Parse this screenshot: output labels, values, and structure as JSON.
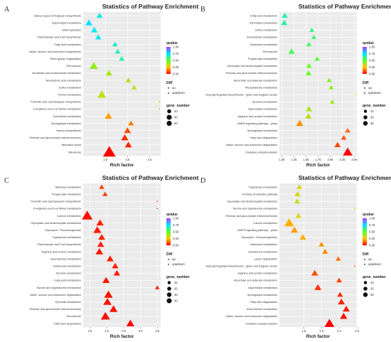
{
  "chart_data": [
    {
      "panel": "A",
      "type": "scatter",
      "title": "Statistics of Pathway Enrichment",
      "xlabel": "Rich factor",
      "xlim": [
        1.0,
        2.75
      ],
      "xticks": [
        "1.5",
        "2.0",
        "2.5"
      ],
      "xtick_values": [
        1.5,
        2.0,
        2.5
      ],
      "qvalue_range": [
        0,
        1
      ],
      "qvalue_ticks": [
        "1.00",
        "0.75",
        "0.50",
        "0.25",
        "0.00"
      ],
      "size_legend_title": "gene_number",
      "size_legend_values": [
        20,
        40,
        60
      ],
      "size_legend_labels": [
        "20",
        "40",
        "60"
      ],
      "diff_title": "Diff",
      "diff_entries": [
        "up",
        "up&down"
      ],
      "terms": [
        {
          "label": "Various types of N-glycan biosynthesis",
          "rich": 1.37,
          "q": 0.72,
          "genes": 8,
          "diff": "up"
        },
        {
          "label": "Glycerolipid metabolism",
          "rich": 1.13,
          "q": 0.76,
          "genes": 12,
          "diff": "up"
        },
        {
          "label": "DNA replication",
          "rich": 1.25,
          "q": 0.74,
          "genes": 10,
          "diff": "up"
        },
        {
          "label": "Pantothenate and CoA biosynthesis",
          "rich": 1.34,
          "q": 0.73,
          "genes": 8,
          "diff": "up"
        },
        {
          "label": "Fatty acid metabolism",
          "rich": 1.72,
          "q": 0.68,
          "genes": 6,
          "diff": "up"
        },
        {
          "label": "Valine, leucine and isoleucine biosynthesis",
          "rich": 1.78,
          "q": 0.68,
          "genes": 6,
          "diff": "up"
        },
        {
          "label": "Other glycan degradation",
          "rich": 1.87,
          "q": 0.66,
          "genes": 6,
          "diff": "up"
        },
        {
          "label": "Peroxisome",
          "rich": 1.24,
          "q": 0.42,
          "genes": 20,
          "diff": "up"
        },
        {
          "label": "Nicotinate and nicotinamide metabolism",
          "rich": 1.58,
          "q": 0.38,
          "genes": 10,
          "diff": "up"
        },
        {
          "label": "Arachidonic acid metabolism",
          "rich": 2.02,
          "q": 0.36,
          "genes": 6,
          "diff": "up"
        },
        {
          "label": "Sulfur metabolism",
          "rich": 2.15,
          "q": 0.35,
          "genes": 5,
          "diff": "up"
        },
        {
          "label": "Purine metabolism",
          "rich": 1.42,
          "q": 0.34,
          "genes": 22,
          "diff": "up"
        },
        {
          "label": "Penicillin and cephalosporin biosynthesis",
          "rich": 2.72,
          "q": 0.32,
          "genes": 3,
          "diff": "up&down"
        },
        {
          "label": "D-Arginine and D-ornithine metabolism",
          "rich": 2.72,
          "q": 0.32,
          "genes": 3,
          "diff": "up&down"
        },
        {
          "label": "Pyrimidine metabolism",
          "rich": 1.57,
          "q": 0.2,
          "genes": 14,
          "diff": "up"
        },
        {
          "label": "Sphingolipid metabolism",
          "rich": 2.08,
          "q": 0.16,
          "genes": 8,
          "diff": "up"
        },
        {
          "label": "Steroid biosynthesis",
          "rich": 2.0,
          "q": 0.1,
          "genes": 12,
          "diff": "up"
        },
        {
          "label": "Pentose and glucuronate interconversions",
          "rich": 1.94,
          "q": 0.06,
          "genes": 14,
          "diff": "up"
        },
        {
          "label": "Mismatch repair",
          "rich": 2.02,
          "q": 0.04,
          "genes": 12,
          "diff": "up"
        },
        {
          "label": "Ribosome",
          "rich": 1.59,
          "q": 0.0,
          "genes": 60,
          "diff": "up"
        }
      ]
    },
    {
      "panel": "B",
      "type": "scatter",
      "title": "Statistics of Pathway Enrichment",
      "xlabel": "Rich factor",
      "xlim": [
        0.95,
        2.55
      ],
      "xticks": [
        "1.00",
        "1.25",
        "1.50",
        "1.75",
        "2.00",
        "2.25",
        "2.50"
      ],
      "xtick_values": [
        1.0,
        1.25,
        1.5,
        1.75,
        2.0,
        2.25,
        2.5
      ],
      "qvalue_range": [
        0,
        1
      ],
      "qvalue_ticks": [
        "1.00",
        "0.75",
        "0.50",
        "0.25",
        "0.00"
      ],
      "size_legend_title": "gene_number",
      "size_legend_values": [
        10,
        20,
        30
      ],
      "size_legend_labels": [
        "10",
        "20",
        "30"
      ],
      "diff_title": "Diff",
      "diff_entries": [
        "up",
        "up&down"
      ],
      "terms": [
        {
          "label": "Fatty acid metabolism",
          "rich": 1.06,
          "q": 0.66,
          "genes": 8,
          "diff": "up"
        },
        {
          "label": "Pyrimidine metabolism",
          "rich": 1.05,
          "q": 0.64,
          "genes": 9,
          "diff": "up"
        },
        {
          "label": "Sulfur metabolism",
          "rich": 1.62,
          "q": 0.6,
          "genes": 4,
          "diff": "up"
        },
        {
          "label": "beta-Alanine metabolism",
          "rich": 1.66,
          "q": 0.58,
          "genes": 4,
          "diff": "up"
        },
        {
          "label": "Galactose metabolism",
          "rich": 1.56,
          "q": 0.57,
          "genes": 5,
          "diff": "up"
        },
        {
          "label": "Peroxisome",
          "rich": 1.2,
          "q": 0.55,
          "genes": 10,
          "diff": "up"
        },
        {
          "label": "Propanoate metabolism",
          "rich": 1.73,
          "q": 0.52,
          "genes": 5,
          "diff": "up"
        },
        {
          "label": "Glyoxylate and dicarboxylate metabolism",
          "rich": 1.56,
          "q": 0.5,
          "genes": 6,
          "diff": "up"
        },
        {
          "label": "Pentose and glucuronate interconversions",
          "rich": 1.55,
          "q": 0.49,
          "genes": 7,
          "diff": "up"
        },
        {
          "label": "Ascorbate and aldarate metabolism",
          "rich": 1.98,
          "q": 0.45,
          "genes": 4,
          "diff": "up"
        },
        {
          "label": "Phenylalanine metabolism",
          "rich": 2.02,
          "q": 0.44,
          "genes": 4,
          "diff": "up"
        },
        {
          "label": "Glycosphingolipid biosynthesis - globo and isoglobo series",
          "rich": 2.52,
          "q": 0.32,
          "genes": 2,
          "diff": "up&down"
        },
        {
          "label": "Tyrosine metabolism",
          "rich": 2.04,
          "q": 0.4,
          "genes": 4,
          "diff": "up"
        },
        {
          "label": "Glycerolipid metabolism",
          "rich": 1.56,
          "q": 0.38,
          "genes": 9,
          "diff": "up"
        },
        {
          "label": "Arginine and proline metabolism",
          "rich": 1.55,
          "q": 0.36,
          "genes": 9,
          "diff": "up"
        },
        {
          "label": "MAPK signaling pathway - yeast",
          "rich": 1.37,
          "q": 0.18,
          "genes": 14,
          "diff": "up"
        },
        {
          "label": "Sphingolipid metabolism",
          "rich": 2.36,
          "q": 0.12,
          "genes": 5,
          "diff": "up"
        },
        {
          "label": "Fatty acid degradation",
          "rich": 2.28,
          "q": 0.1,
          "genes": 6,
          "diff": "up"
        },
        {
          "label": "Valine, leucine and isoleucine degradation",
          "rich": 2.15,
          "q": 0.08,
          "genes": 8,
          "diff": "up"
        },
        {
          "label": "Oxidative phosphorylation",
          "rich": 2.36,
          "q": 0.0,
          "genes": 30,
          "diff": "up"
        }
      ]
    },
    {
      "panel": "C",
      "type": "scatter",
      "title": "Statistics of Pathway Enrichment",
      "xlabel": "Rich factor",
      "xlim": [
        1.3,
        3.6
      ],
      "xticks": [
        "1.5",
        "2.0",
        "2.5",
        "3.0",
        "3.5"
      ],
      "xtick_values": [
        1.5,
        2.0,
        2.5,
        3.0,
        3.5
      ],
      "qvalue_range": [
        0,
        1
      ],
      "qvalue_ticks": [
        "1.00",
        "0.75",
        "0.50",
        "0.25",
        "0.00"
      ],
      "size_legend_title": "gene_number",
      "size_legend_values": [
        10,
        20,
        30,
        40
      ],
      "size_legend_labels": [
        "10",
        "20",
        "30",
        "40"
      ],
      "diff_title": "Diff",
      "diff_entries": [
        "up",
        "up&down"
      ],
      "terms": [
        {
          "label": "Methane metabolism",
          "rich": 1.85,
          "q": 0.08,
          "genes": 5,
          "diff": "up"
        },
        {
          "label": "Propanoate metabolism",
          "rich": 1.95,
          "q": 0.07,
          "genes": 5,
          "diff": "up"
        },
        {
          "label": "Penicillin and cephalosporin biosynthesis",
          "rich": 3.5,
          "q": 0.06,
          "genes": 2,
          "diff": "up&down"
        },
        {
          "label": "D-Arginine and D-ornithine metabolism",
          "rich": 3.5,
          "q": 0.06,
          "genes": 2,
          "diff": "up&down"
        },
        {
          "label": "Carbon metabolism",
          "rich": 1.42,
          "q": 0.02,
          "genes": 40,
          "diff": "up"
        },
        {
          "label": "Glyoxylate and dicarboxylate metabolism",
          "rich": 1.8,
          "q": 0.04,
          "genes": 14,
          "diff": "up"
        },
        {
          "label": "Glycolysis / Gluconeogenesis",
          "rich": 1.72,
          "q": 0.03,
          "genes": 18,
          "diff": "up"
        },
        {
          "label": "Tryptophan metabolism",
          "rich": 1.85,
          "q": 0.04,
          "genes": 12,
          "diff": "up"
        },
        {
          "label": "Pantothenate and CoA biosynthesis",
          "rich": 1.82,
          "q": 0.04,
          "genes": 12,
          "diff": "up"
        },
        {
          "label": "Arginine and proline metabolism",
          "rich": 1.78,
          "q": 0.03,
          "genes": 16,
          "diff": "up"
        },
        {
          "label": "beta-Alanine metabolism",
          "rich": 2.1,
          "q": 0.03,
          "genes": 12,
          "diff": "up"
        },
        {
          "label": "Butanoate metabolism",
          "rich": 2.25,
          "q": 0.03,
          "genes": 10,
          "diff": "up"
        },
        {
          "label": "Tyrosine metabolism",
          "rich": 2.3,
          "q": 0.03,
          "genes": 10,
          "diff": "up"
        },
        {
          "label": "Fatty acid metabolism",
          "rich": 1.98,
          "q": 0.03,
          "genes": 14,
          "diff": "up"
        },
        {
          "label": "Taurine and hypotaurine metabolism",
          "rich": 3.5,
          "q": 0.04,
          "genes": 3,
          "diff": "up"
        },
        {
          "label": "Valine, leucine and isoleucine degradation",
          "rich": 2.05,
          "q": 0.02,
          "genes": 22,
          "diff": "up"
        },
        {
          "label": "Pyruvate metabolism",
          "rich": 2.02,
          "q": 0.02,
          "genes": 20,
          "diff": "up"
        },
        {
          "label": "Pentose and glucuronate interconversions",
          "rich": 2.2,
          "q": 0.02,
          "genes": 18,
          "diff": "up"
        },
        {
          "label": "Peroxisome",
          "rich": 1.96,
          "q": 0.02,
          "genes": 26,
          "diff": "up"
        },
        {
          "label": "Fatty acid degradation",
          "rich": 2.7,
          "q": 0.01,
          "genes": 18,
          "diff": "up"
        }
      ]
    },
    {
      "panel": "D",
      "type": "scatter",
      "title": "Statistics of Pathway Enrichment",
      "xlabel": "Rich factor",
      "xlim": [
        1.05,
        2.8
      ],
      "xticks": [
        "1.6",
        "2.0",
        "2.4",
        "2.8"
      ],
      "xtick_values": [
        1.6,
        2.0,
        2.4,
        2.8
      ],
      "qvalue_range": [
        0,
        1
      ],
      "qvalue_ticks": [
        "1.00",
        "0.75",
        "0.50",
        "0.25",
        "0.00"
      ],
      "size_legend_title": "gene_number",
      "size_legend_values": [
        10,
        20,
        30
      ],
      "size_legend_labels": [
        "10",
        "20",
        "30"
      ],
      "diff_title": "Diff",
      "diff_entries": [
        "up",
        "up&down"
      ],
      "terms": [
        {
          "label": "Tryptophan metabolism",
          "rich": 1.5,
          "q": 0.3,
          "genes": 6,
          "diff": "up"
        },
        {
          "label": "Pentose phosphate pathway",
          "rich": 1.46,
          "q": 0.32,
          "genes": 7,
          "diff": "up"
        },
        {
          "label": "Glyoxylate and dicarboxylate metabolism",
          "rich": 1.45,
          "q": 0.33,
          "genes": 6,
          "diff": "up"
        },
        {
          "label": "Taurine and hypotaurine metabolism",
          "rich": 2.75,
          "q": 0.3,
          "genes": 2,
          "diff": "up&down"
        },
        {
          "label": "Pentose and glucuronate interconversions",
          "rich": 1.48,
          "q": 0.3,
          "genes": 7,
          "diff": "up"
        },
        {
          "label": "Carbon metabolism",
          "rich": 1.27,
          "q": 0.22,
          "genes": 30,
          "diff": "up"
        },
        {
          "label": "MAPK signaling pathway - yeast",
          "rich": 1.39,
          "q": 0.2,
          "genes": 14,
          "diff": "up"
        },
        {
          "label": "Glycolysis / Gluconeogenesis",
          "rich": 1.58,
          "q": 0.22,
          "genes": 10,
          "diff": "up"
        },
        {
          "label": "Galactose metabolism",
          "rich": 2.0,
          "q": 0.18,
          "genes": 6,
          "diff": "up"
        },
        {
          "label": "Glutathione metabolism",
          "rich": 2.08,
          "q": 0.17,
          "genes": 7,
          "diff": "up"
        },
        {
          "label": "Lysine degradation",
          "rich": 2.38,
          "q": 0.14,
          "genes": 5,
          "diff": "up"
        },
        {
          "label": "Glycosphingolipid biosynthesis - globo and isoglobo series",
          "rich": 2.75,
          "q": 0.12,
          "genes": 3,
          "diff": "up&down"
        },
        {
          "label": "Arginine and proline metabolism",
          "rich": 1.85,
          "q": 0.1,
          "genes": 12,
          "diff": "up"
        },
        {
          "label": "Ascorbate and aldarate metabolism",
          "rich": 2.4,
          "q": 0.08,
          "genes": 6,
          "diff": "up"
        },
        {
          "label": "Glycerolipid metabolism",
          "rich": 1.92,
          "q": 0.06,
          "genes": 12,
          "diff": "up"
        },
        {
          "label": "Sphingolipid metabolism",
          "rich": 2.42,
          "q": 0.05,
          "genes": 7,
          "diff": "up"
        },
        {
          "label": "Fatty acid degradation",
          "rich": 2.45,
          "q": 0.04,
          "genes": 12,
          "diff": "up"
        },
        {
          "label": "beta-Alanine metabolism",
          "rich": 2.56,
          "q": 0.03,
          "genes": 12,
          "diff": "up"
        },
        {
          "label": "Valine, leucine and isoleucine degradation",
          "rich": 2.5,
          "q": 0.02,
          "genes": 14,
          "diff": "up"
        },
        {
          "label": "Oxidative phosphorylation",
          "rich": 2.18,
          "q": 0.0,
          "genes": 32,
          "diff": "up"
        }
      ]
    }
  ]
}
